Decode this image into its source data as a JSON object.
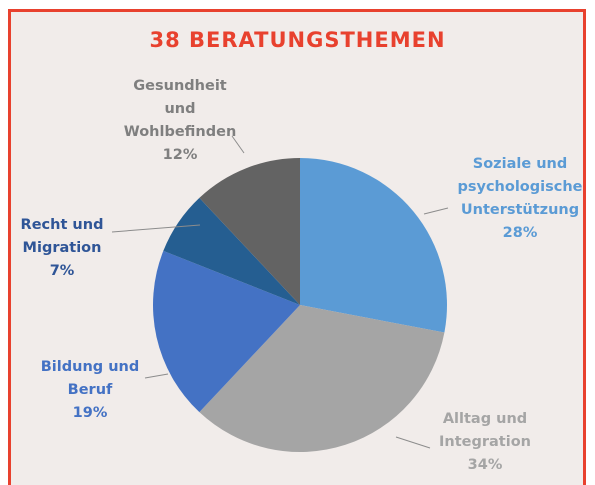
{
  "chart_data": {
    "type": "pie",
    "title": "38 BERATUNGSTHEMEN",
    "categories": [
      "Soziale und\npsychologische\nUnterstützung",
      "Alltag und\nIntegration",
      "Bildung und\nBeruf",
      "Recht und\nMigration",
      "Gesundheit\nund\nWohlbefinden"
    ],
    "values": [
      28,
      34,
      19,
      7,
      12
    ],
    "value_labels": [
      "28%",
      "34%",
      "19%",
      "7%",
      "12%"
    ],
    "colors": [
      "#5b9bd5",
      "#a5a5a5",
      "#4472c4",
      "#255e91",
      "#636363"
    ]
  }
}
